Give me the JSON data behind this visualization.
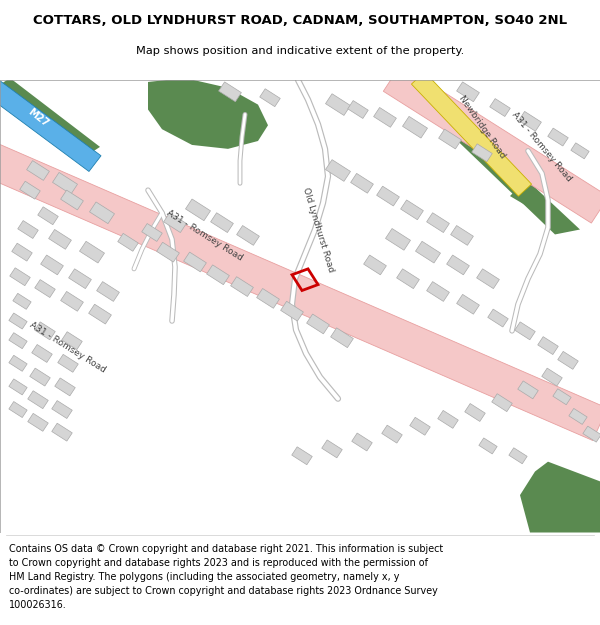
{
  "title": "COTTARS, OLD LYNDHURST ROAD, CADNAM, SOUTHAMPTON, SO40 2NL",
  "subtitle": "Map shows position and indicative extent of the property.",
  "footer_lines": [
    "Contains OS data © Crown copyright and database right 2021. This information is subject to Crown copyright and database rights 2023 and is reproduced with the permission of",
    "HM Land Registry. The polygons (including the associated geometry, namely x, y co-ordinates) are subject to Crown copyright and database rights 2023 Ordnance Survey",
    "100026316."
  ],
  "map_bg": "#ffffff",
  "road_pink_fill": "#f5c8c8",
  "road_pink_edge": "#e8a0a0",
  "road_yellow_fill": "#f0e070",
  "road_yellow_edge": "#c8b000",
  "motorway_fill": "#5ab0e8",
  "motorway_edge": "#2080b0",
  "green_fill": "#5a8a50",
  "building_fill": "#d5d5d5",
  "building_edge": "#aaaaaa",
  "plot_edge": "#cc0000",
  "label_color": "#444444"
}
